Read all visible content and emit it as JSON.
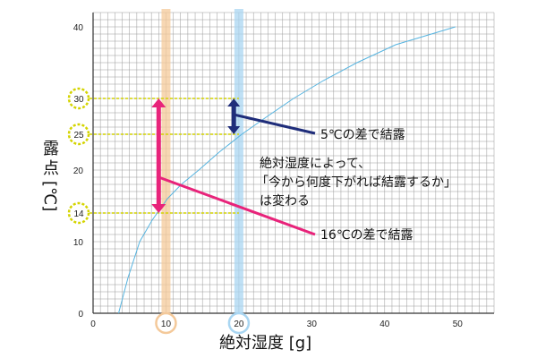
{
  "chart_data": {
    "type": "line",
    "xlabel": "絶対湿度 [g]",
    "ylabel": "露点 [℃]",
    "xlim": [
      0,
      55
    ],
    "ylim": [
      0,
      42
    ],
    "x_ticks": [
      0,
      10,
      20,
      30,
      40,
      50
    ],
    "y_ticks": [
      0,
      10,
      20,
      30,
      40
    ],
    "grid": true,
    "series": [
      {
        "color": "#56b4e0",
        "points": [
          [
            3.5,
            0
          ],
          [
            4.8,
            5
          ],
          [
            6.4,
            10
          ],
          [
            8.1,
            13
          ],
          [
            10.2,
            16
          ],
          [
            12.1,
            18
          ],
          [
            14.5,
            20
          ],
          [
            17.3,
            22.5
          ],
          [
            20.4,
            25
          ],
          [
            23.9,
            27.5
          ],
          [
            27.5,
            30
          ],
          [
            31.6,
            32.5
          ],
          [
            36.2,
            35
          ],
          [
            41.5,
            37.5
          ],
          [
            49.7,
            40
          ]
        ]
      }
    ],
    "highlighted_x": [
      10,
      20
    ],
    "highlighted_y": [
      30,
      25,
      14
    ],
    "pink_arrow": {
      "from": 30,
      "to": 14,
      "x": 9,
      "color": "#e8237a"
    },
    "navy_arrow": {
      "from": 30,
      "to": 25,
      "x": 19.3,
      "color": "#1f2d7a"
    },
    "annotations": {
      "navy_label": "5℃の差で結露",
      "pink_label": "16℃の差で結露",
      "note_lines": [
        "絶対湿度によって、",
        "「今から何度下がれば結露するか」",
        "は変わる"
      ]
    }
  }
}
